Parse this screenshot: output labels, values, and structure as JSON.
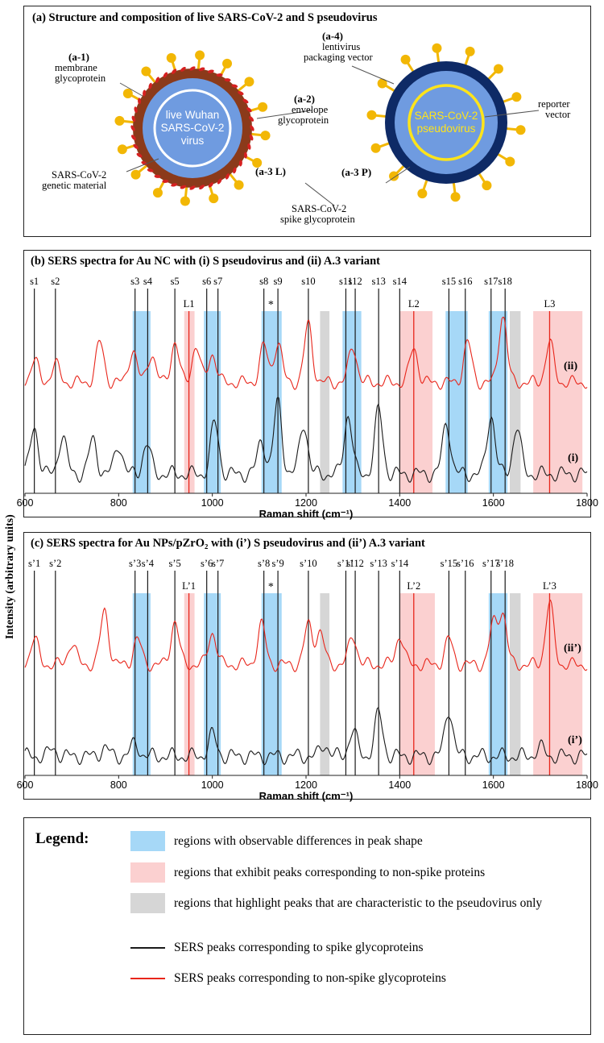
{
  "panel_a": {
    "title": "(a) Structure and composition of live SARS-CoV-2 and S pseudovirus",
    "live_virus_text": [
      "live Wuhan",
      "SARS-CoV-2",
      "virus"
    ],
    "pseudo_virus_text": [
      "SARS-CoV-2",
      "pseudovirus"
    ],
    "labels": {
      "a1_tag": "(a-1)",
      "a1_text": [
        "membrane",
        "glycoprotein"
      ],
      "a2_tag": "(a-2)",
      "a2_text": [
        "envelope",
        "glycoprotein"
      ],
      "a3l_tag": "(a-3 L)",
      "genetic_text": [
        "SARS-CoV-2",
        "genetic material"
      ],
      "a4_tag": "(a-4)",
      "a4_text": [
        "lentivirus",
        "packaging vector"
      ],
      "reporter_text": [
        "reporter",
        "vector"
      ],
      "a3p_tag": "(a-3 P)",
      "spike_text": [
        "SARS-CoV-2",
        "spike glycoprotein"
      ]
    },
    "colors": {
      "core": "#6f9be0",
      "brown_shell": "#8b3a1a",
      "navy_shell": "#0e2a66",
      "spike": "#f2b705",
      "membrane_protein": "#d62020",
      "pseudo_ring": "#ffe41a"
    }
  },
  "panel_b": {
    "title": "(b) SERS spectra for Au NC with (i) S pseudovirus and (ii) A.3 variant",
    "series_label_top": "(ii)",
    "series_label_bottom": "(i)",
    "star": "*"
  },
  "panel_c": {
    "title": "(c) SERS spectra for Au NPs/pZrO₂ with (i’) S pseudovirus and (ii’) A.3 variant",
    "series_label_top": "(ii’)",
    "series_label_bottom": "(i’)",
    "star": "*"
  },
  "y_axis_label": "Intensity (arbitrary units)",
  "chart_data": [
    {
      "type": "line",
      "panel": "b",
      "title": "(b) SERS spectra for Au NC with (i) S pseudovirus and (ii) A.3 variant",
      "xlabel": "Raman shift (cm⁻¹)",
      "ylabel": "Intensity (arbitrary units)",
      "xlim": [
        600,
        1800
      ],
      "xticks": [
        600,
        800,
        1000,
        1200,
        1400,
        1600,
        1800
      ],
      "series": [
        {
          "name": "(ii)",
          "color": "#e8261b",
          "peaks": [
            [
              620,
              0.3
            ],
            [
              665,
              0.25
            ],
            [
              760,
              0.55
            ],
            [
              830,
              0.45
            ],
            [
              870,
              0.4
            ],
            [
              920,
              0.55
            ],
            [
              965,
              0.5
            ],
            [
              1000,
              0.4
            ],
            [
              1110,
              0.5
            ],
            [
              1140,
              0.55
            ],
            [
              1205,
              0.8
            ],
            [
              1300,
              0.5
            ],
            [
              1430,
              0.48
            ],
            [
              1545,
              0.55
            ],
            [
              1620,
              0.95
            ],
            [
              1720,
              0.55
            ]
          ]
        },
        {
          "name": "(i)",
          "color": "#1a1a1a",
          "peaks": [
            [
              620,
              0.55
            ],
            [
              680,
              0.45
            ],
            [
              745,
              0.4
            ],
            [
              800,
              0.35
            ],
            [
              860,
              0.35
            ],
            [
              1005,
              0.6
            ],
            [
              1105,
              0.4
            ],
            [
              1140,
              0.85
            ],
            [
              1195,
              0.6
            ],
            [
              1290,
              0.7
            ],
            [
              1355,
              0.75
            ],
            [
              1500,
              0.6
            ],
            [
              1595,
              0.7
            ],
            [
              1650,
              0.55
            ]
          ]
        }
      ],
      "peak_lines": [
        {
          "label": "s1",
          "x": 620
        },
        {
          "label": "s2",
          "x": 665
        },
        {
          "label": "s3",
          "x": 835
        },
        {
          "label": "s4",
          "x": 862
        },
        {
          "label": "s5",
          "x": 920
        },
        {
          "label": "s6",
          "x": 988
        },
        {
          "label": "s7",
          "x": 1012
        },
        {
          "label": "s8",
          "x": 1110
        },
        {
          "label": "s9",
          "x": 1140
        },
        {
          "label": "s10",
          "x": 1205
        },
        {
          "label": "s11",
          "x": 1285
        },
        {
          "label": "s12",
          "x": 1305
        },
        {
          "label": "s13",
          "x": 1355
        },
        {
          "label": "s14",
          "x": 1400
        },
        {
          "label": "s15",
          "x": 1505
        },
        {
          "label": "s16",
          "x": 1540
        },
        {
          "label": "s17",
          "x": 1595
        },
        {
          "label": "s18",
          "x": 1625
        }
      ],
      "red_lines": [
        {
          "label": "L1",
          "x": 950
        },
        {
          "label": "L2",
          "x": 1430
        },
        {
          "label": "L3",
          "x": 1720
        }
      ],
      "regions": [
        {
          "type": "blue",
          "from": 830,
          "to": 868
        },
        {
          "type": "pink",
          "from": 940,
          "to": 962
        },
        {
          "type": "blue",
          "from": 982,
          "to": 1018
        },
        {
          "type": "blue",
          "from": 1105,
          "to": 1148
        },
        {
          "type": "gray",
          "from": 1230,
          "to": 1250
        },
        {
          "type": "blue",
          "from": 1278,
          "to": 1318
        },
        {
          "type": "pink",
          "from": 1400,
          "to": 1470
        },
        {
          "type": "blue",
          "from": 1498,
          "to": 1545
        },
        {
          "type": "blue",
          "from": 1590,
          "to": 1630
        },
        {
          "type": "gray",
          "from": 1635,
          "to": 1658
        },
        {
          "type": "pink",
          "from": 1685,
          "to": 1790
        }
      ]
    },
    {
      "type": "line",
      "panel": "c",
      "title": "(c) SERS spectra for Au NPs/pZrO₂ with (i’) S pseudovirus and (ii’) A.3 variant",
      "xlabel": "Raman shift (cm⁻¹)",
      "ylabel": "Intensity (arbitrary units)",
      "xlim": [
        600,
        1800
      ],
      "xticks": [
        600,
        800,
        1000,
        1200,
        1400,
        1600,
        1800
      ],
      "series": [
        {
          "name": "(ii’)",
          "color": "#e8261b",
          "peaks": [
            [
              620,
              0.35
            ],
            [
              700,
              0.3
            ],
            [
              770,
              0.75
            ],
            [
              840,
              0.35
            ],
            [
              920,
              0.6
            ],
            [
              1000,
              0.45
            ],
            [
              1105,
              0.55
            ],
            [
              1205,
              0.55
            ],
            [
              1230,
              0.45
            ],
            [
              1300,
              0.4
            ],
            [
              1400,
              0.4
            ],
            [
              1505,
              0.35
            ],
            [
              1600,
              0.55
            ],
            [
              1620,
              0.7
            ],
            [
              1720,
              0.85
            ]
          ]
        },
        {
          "name": "(i’)",
          "color": "#1a1a1a",
          "peaks": [
            [
              660,
              0.08
            ],
            [
              770,
              0.1
            ],
            [
              835,
              0.15
            ],
            [
              1000,
              0.25
            ],
            [
              1240,
              0.14
            ],
            [
              1300,
              0.3
            ],
            [
              1355,
              0.5
            ],
            [
              1505,
              0.55
            ],
            [
              1700,
              0.1
            ]
          ]
        }
      ],
      "peak_lines": [
        {
          "label": "s’1",
          "x": 620
        },
        {
          "label": "s’2",
          "x": 665
        },
        {
          "label": "s’3",
          "x": 835
        },
        {
          "label": "s’4",
          "x": 862
        },
        {
          "label": "s’5",
          "x": 920
        },
        {
          "label": "s’6",
          "x": 988
        },
        {
          "label": "s’7",
          "x": 1012
        },
        {
          "label": "s’8",
          "x": 1110
        },
        {
          "label": "s’9",
          "x": 1140
        },
        {
          "label": "s’10",
          "x": 1205
        },
        {
          "label": "s’11",
          "x": 1285
        },
        {
          "label": "s’12",
          "x": 1305
        },
        {
          "label": "s’13",
          "x": 1355
        },
        {
          "label": "s’14",
          "x": 1400
        },
        {
          "label": "s’15",
          "x": 1505
        },
        {
          "label": "s’16",
          "x": 1540
        },
        {
          "label": "s’17",
          "x": 1595
        },
        {
          "label": "s’18",
          "x": 1625
        }
      ],
      "red_lines": [
        {
          "label": "L’1",
          "x": 950
        },
        {
          "label": "L’2",
          "x": 1430
        },
        {
          "label": "L’3",
          "x": 1720
        }
      ],
      "regions": [
        {
          "type": "blue",
          "from": 830,
          "to": 868
        },
        {
          "type": "pink",
          "from": 940,
          "to": 962
        },
        {
          "type": "blue",
          "from": 982,
          "to": 1018
        },
        {
          "type": "blue",
          "from": 1105,
          "to": 1148
        },
        {
          "type": "gray",
          "from": 1230,
          "to": 1250
        },
        {
          "type": "pink",
          "from": 1400,
          "to": 1475
        },
        {
          "type": "blue",
          "from": 1590,
          "to": 1630
        },
        {
          "type": "gray",
          "from": 1635,
          "to": 1658
        },
        {
          "type": "pink",
          "from": 1685,
          "to": 1790
        }
      ]
    }
  ],
  "legend": {
    "title": "Legend:",
    "items": [
      {
        "kind": "blue",
        "text": "regions with observable differences in peak shape"
      },
      {
        "kind": "pink",
        "text": "regions that exhibit peaks corresponding to non-spike proteins"
      },
      {
        "kind": "gray",
        "text": "regions that highlight peaks that are characteristic to the pseudovirus only"
      },
      {
        "kind": "black-line",
        "text": "SERS peaks corresponding to spike glycoproteins"
      },
      {
        "kind": "red-line",
        "text": "SERS peaks corresponding to non-spike glycoproteins"
      }
    ],
    "colors": {
      "blue": "#a6d8f7",
      "pink": "#fbd0d0",
      "gray": "#d6d6d6",
      "black": "#1a1a1a",
      "red": "#e8261b"
    }
  }
}
